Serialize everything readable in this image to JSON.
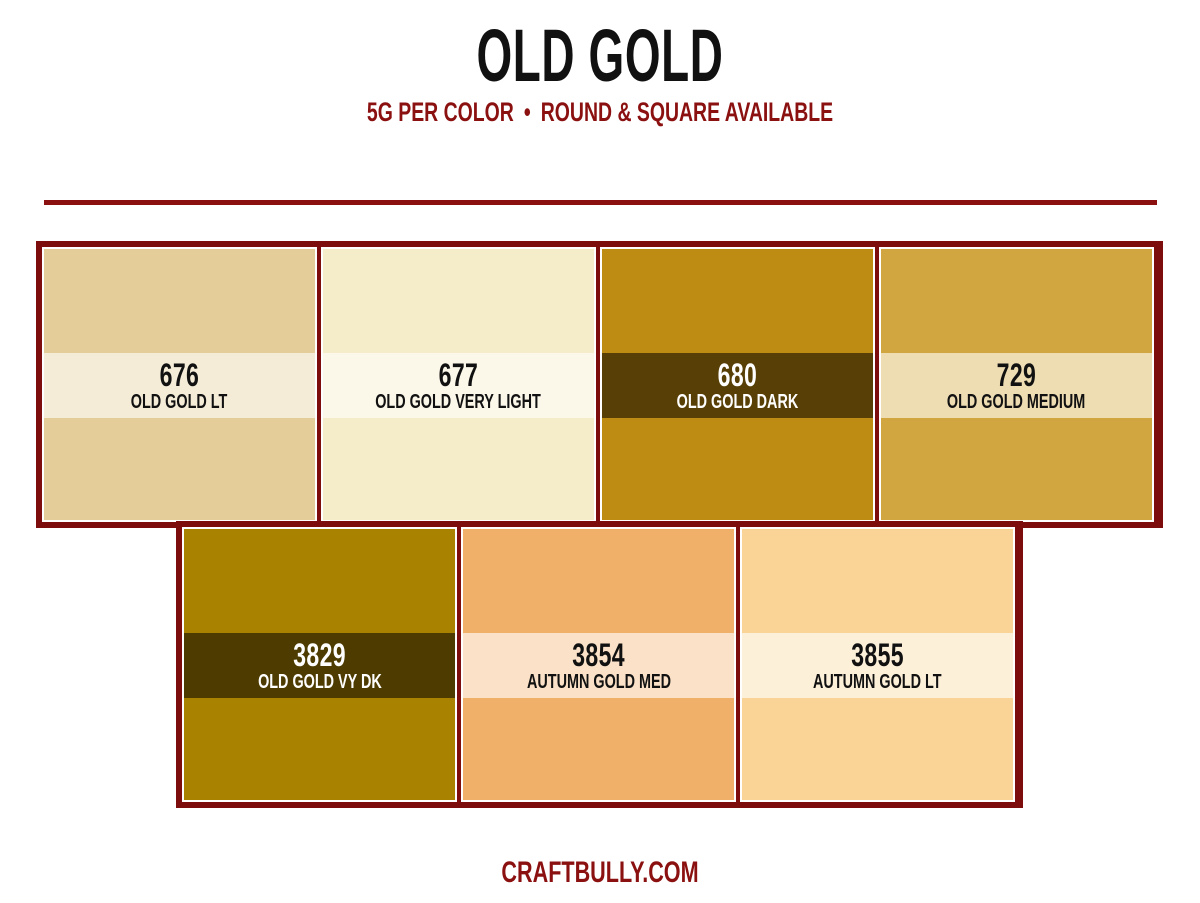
{
  "header": {
    "title": "OLD GOLD",
    "subtitle_left": "5G PER COLOR",
    "subtitle_sep": "•",
    "subtitle_right": "ROUND & SQUARE AVAILABLE"
  },
  "colors": {
    "accent": "#8b1010",
    "frame": "#7d0c0c"
  },
  "swatches": [
    {
      "code": "676",
      "name": "OLD GOLD LT",
      "fill": "#e4cd99",
      "band": "#f5ecd8",
      "text": "#111111"
    },
    {
      "code": "677",
      "name": "OLD GOLD VERY LIGHT",
      "fill": "#f5ecca",
      "band": "#fbf7e9",
      "text": "#111111"
    },
    {
      "code": "680",
      "name": "OLD GOLD DARK",
      "fill": "#be8c12",
      "band": "#573f06",
      "text": "#ffffff"
    },
    {
      "code": "729",
      "name": "OLD GOLD MEDIUM",
      "fill": "#d1a540",
      "band": "#eedcb3",
      "text": "#111111"
    },
    {
      "code": "3829",
      "name": "OLD GOLD VY DK",
      "fill": "#a98300",
      "band": "#4d3b00",
      "text": "#ffffff"
    },
    {
      "code": "3854",
      "name": "AUTUMN GOLD MED",
      "fill": "#f1b06a",
      "band": "#fae1c7",
      "text": "#111111"
    },
    {
      "code": "3855",
      "name": "AUTUMN GOLD LT",
      "fill": "#f9d496",
      "band": "#fdf0d9",
      "text": "#111111"
    }
  ],
  "footer": {
    "site": "CRAFTBULLY.COM"
  }
}
